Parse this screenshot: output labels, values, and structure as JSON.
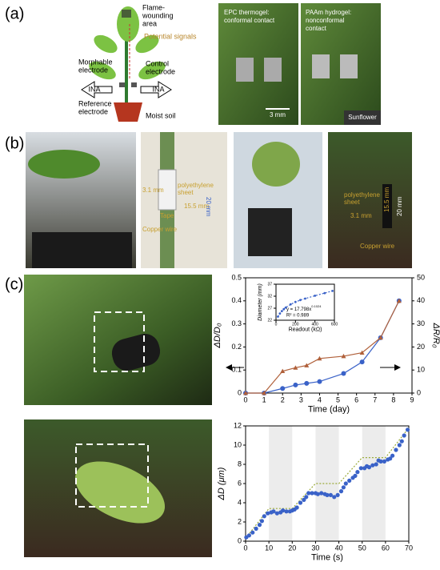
{
  "panel_a": {
    "label": "(a)",
    "flame": [
      "Flame-",
      "wounding",
      "area"
    ],
    "signals": "Potential signals",
    "morphable": [
      "Morphable",
      "electrode"
    ],
    "control": [
      "Control",
      "electrode"
    ],
    "ina_left": "INA",
    "ina_right": "INA",
    "reference": [
      "Reference",
      "electrode"
    ],
    "soil": "Moist soil",
    "epc": [
      "EPC thermogel:",
      "conformal contact"
    ],
    "paam": [
      "PAAm hydrogel:",
      "nonconformal",
      "contact"
    ],
    "scale": "3 mm",
    "plant": "Sunflower"
  },
  "panel_b": {
    "label": "(b)",
    "photo2": {
      "sheet": [
        "polyethylene",
        "sheet"
      ],
      "width": "3.1 mm",
      "inner": "15.5 mm",
      "outer": "20 mm",
      "tape": "Tape",
      "wire": "Copper wire"
    },
    "photo4": {
      "sheet": [
        "polyethylene",
        "sheet"
      ],
      "width": "3.1 mm",
      "inner": "15.5 mm",
      "outer": "20 mm",
      "wire": "Copper wire"
    }
  },
  "panel_c": {
    "label": "(c)"
  },
  "chart_data": [
    {
      "type": "line",
      "x_label": "Time (day)",
      "y_label": "ΔD/D₀",
      "y2_label": "ΔR/R₀",
      "x": [
        0,
        1,
        2,
        2.7,
        3.3,
        4,
        5.3,
        6.3,
        7.3,
        8.3
      ],
      "series": [
        {
          "color": "#3a62c8",
          "marker": "circle",
          "values": [
            0,
            0,
            0.02,
            0.035,
            0.042,
            0.05,
            0.085,
            0.135,
            0.24,
            0.4
          ]
        },
        {
          "color": "#b0603a",
          "marker": "triangle",
          "axis": "y2",
          "values": [
            0,
            0,
            9.5,
            11,
            12,
            15,
            16,
            17.5,
            24,
            40
          ]
        }
      ],
      "xlim": [
        0,
        9
      ],
      "xticks": [
        0,
        1,
        2,
        3,
        4,
        5,
        6,
        7,
        8,
        9
      ],
      "ylim": [
        0,
        0.5
      ],
      "yticks": [
        0,
        0.1,
        0.2,
        0.3,
        0.4,
        0.5
      ],
      "y2lim": [
        0,
        50
      ],
      "y2ticks": [
        0,
        10,
        20,
        30,
        40,
        50
      ]
    },
    {
      "type": "scatter",
      "x_label": "Readout (kΩ)",
      "y_label": "Diameter (mm)",
      "equation": "y = 17.798x",
      "exponent": "0.1024",
      "r2": "R² = 0.989",
      "x": [
        20,
        40,
        60,
        80,
        100,
        150,
        200,
        250,
        300,
        400,
        500,
        580
      ],
      "values": [
        23.5,
        24.8,
        25.8,
        26.6,
        27.3,
        28.6,
        29.6,
        30.4,
        31,
        32.2,
        33.3,
        34.2
      ],
      "color": "#3a62c8",
      "xlim": [
        0,
        600
      ],
      "xticks": [
        0,
        200,
        400,
        600
      ],
      "ylim": [
        22,
        37
      ],
      "yticks": [
        22,
        27,
        32,
        37
      ]
    },
    {
      "type": "scatter",
      "x_label": "Time (s)",
      "y_label": "ΔD (μm)",
      "x": [
        0.3,
        1.5,
        3,
        4.5,
        6,
        7,
        8,
        9.5,
        11,
        12,
        13.5,
        15,
        16,
        17.5,
        19,
        20,
        21,
        22,
        23.5,
        25,
        26,
        27,
        28.5,
        30,
        31,
        32.5,
        34,
        35,
        36.5,
        38,
        39.5,
        41,
        42,
        43,
        44.5,
        46,
        47,
        48,
        49.5,
        51,
        52,
        53,
        54.5,
        56,
        57,
        58,
        59.5,
        61,
        62,
        63,
        64.5,
        66,
        67,
        68,
        69.5
      ],
      "values": [
        0.4,
        0.6,
        0.9,
        1.3,
        1.7,
        2.1,
        2.6,
        2.9,
        3,
        3.1,
        2.9,
        3,
        3.2,
        3.1,
        3.1,
        3.2,
        3.3,
        3.5,
        4,
        4.3,
        4.6,
        5,
        5,
        5,
        4.9,
        5,
        4.9,
        4.8,
        4.8,
        4.6,
        4.8,
        5.2,
        5.6,
        6,
        6.3,
        6.6,
        6.8,
        7.2,
        7.6,
        7.6,
        7.8,
        7.7,
        7.9,
        8,
        8.4,
        8.3,
        8.3,
        8.5,
        8.6,
        8.9,
        9.5,
        10,
        10.4,
        11,
        11.6
      ],
      "color": "#3a62c8",
      "guide": {
        "x": [
          0,
          10,
          20,
          30,
          40,
          50,
          60,
          70
        ],
        "values": [
          0.3,
          3.4,
          3.4,
          6,
          6,
          8.7,
          8.7,
          11.8
        ],
        "color": "#9aaa3a"
      },
      "shaded": [
        [
          10,
          20
        ],
        [
          30,
          40
        ],
        [
          50,
          60
        ]
      ],
      "shade_color": "#ececec",
      "xlim": [
        0,
        70
      ],
      "xticks": [
        0,
        10,
        20,
        30,
        40,
        50,
        60,
        70
      ],
      "ylim": [
        0,
        12
      ],
      "yticks": [
        0,
        2,
        4,
        6,
        8,
        10,
        12
      ]
    }
  ]
}
